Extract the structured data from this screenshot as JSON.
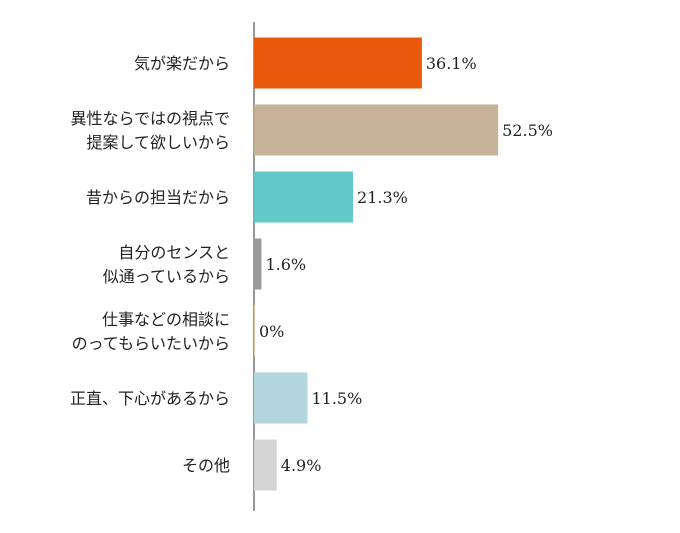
{
  "chart_data": {
    "type": "bar",
    "orientation": "horizontal",
    "categories": [
      [
        "気が楽だから"
      ],
      [
        "異性ならではの視点で",
        "提案して欲しいから"
      ],
      [
        "昔からの担当だから"
      ],
      [
        "自分のセンスと",
        "似通っているから"
      ],
      [
        "仕事などの相談に",
        "のってもらいたいから"
      ],
      [
        "正直、下心があるから"
      ],
      [
        "その他"
      ]
    ],
    "values": [
      36.1,
      52.5,
      21.3,
      1.6,
      0,
      11.5,
      4.9
    ],
    "value_labels": [
      "36.1%",
      "52.5%",
      "21.3%",
      "1.6%",
      "0%",
      "11.5%",
      "4.9%"
    ],
    "colors": [
      "#e8590c",
      "#c6b298",
      "#63c8c8",
      "#9b9b9b",
      "#e0c8a0",
      "#b3d6de",
      "#d4d4d4"
    ],
    "xlim": [
      0,
      100
    ],
    "grid": false,
    "legend": "none",
    "title": "",
    "xlabel": "",
    "ylabel": ""
  }
}
